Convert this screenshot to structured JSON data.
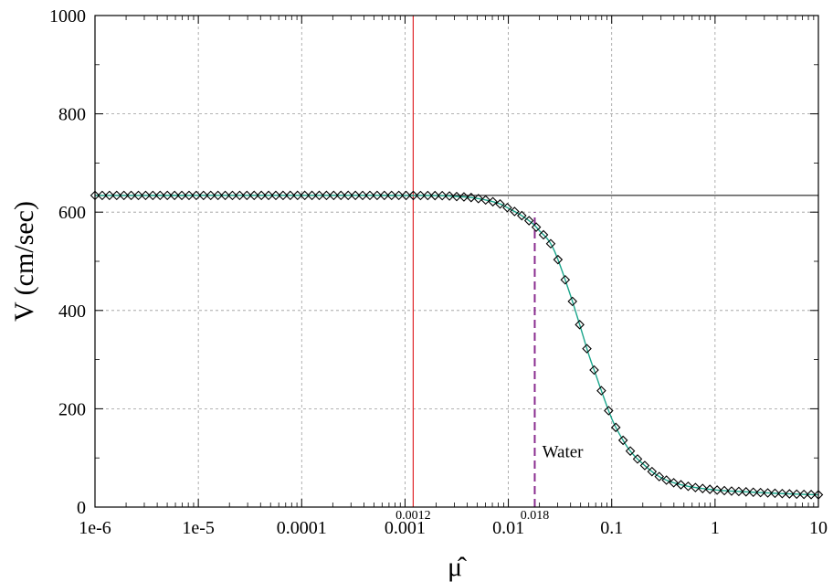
{
  "chart_data": {
    "type": "line",
    "title": "",
    "xlabel": "μ̂",
    "ylabel": "V (cm/sec)",
    "xscale": "log",
    "xlim": [
      1e-06,
      10
    ],
    "ylim": [
      0,
      1000
    ],
    "grid": true,
    "x_tick_values": [
      1e-06,
      1e-05,
      0.0001,
      0.001,
      0.01,
      0.1,
      1,
      10
    ],
    "x_tick_labels": [
      "1e-6",
      "1e-5",
      "0.0001",
      "0.001",
      "0.01",
      "0.1",
      "1",
      "10"
    ],
    "y_tick_values": [
      0,
      200,
      400,
      600,
      800,
      1000
    ],
    "y_tick_labels": [
      "0",
      "200",
      "400",
      "600",
      "800",
      "1000"
    ],
    "horizontal_reference": {
      "y": 634,
      "color": "#000000"
    },
    "vertical_lines": [
      {
        "x": 0.0012,
        "label": "0.0012",
        "color": "#e0282b",
        "style": "solid",
        "y_from": 0,
        "y_to": 1000
      },
      {
        "x": 0.018,
        "label": "0.018",
        "color": "#8a2d8f",
        "style": "dashed",
        "y_from": 0,
        "y_to": 600
      }
    ],
    "annotations": [
      {
        "text": "Water",
        "x": 0.02,
        "y": 112
      }
    ],
    "series": [
      {
        "marker": "diamond",
        "line_color": "#1aa58b",
        "x": [
          1e-06,
          0.001,
          0.003,
          0.005,
          0.008,
          0.01,
          0.013,
          0.016,
          0.018,
          0.02,
          0.025,
          0.03,
          0.04,
          0.05,
          0.06,
          0.07,
          0.08,
          0.1,
          0.12,
          0.15,
          0.2,
          0.3,
          0.5,
          1,
          2,
          5,
          10
        ],
        "y": [
          634,
          634,
          632,
          628,
          618,
          608,
          595,
          582,
          573,
          562,
          540,
          505,
          430,
          365,
          310,
          270,
          235,
          180,
          147,
          115,
          88,
          60,
          44,
          35,
          31,
          27,
          25
        ]
      }
    ]
  }
}
